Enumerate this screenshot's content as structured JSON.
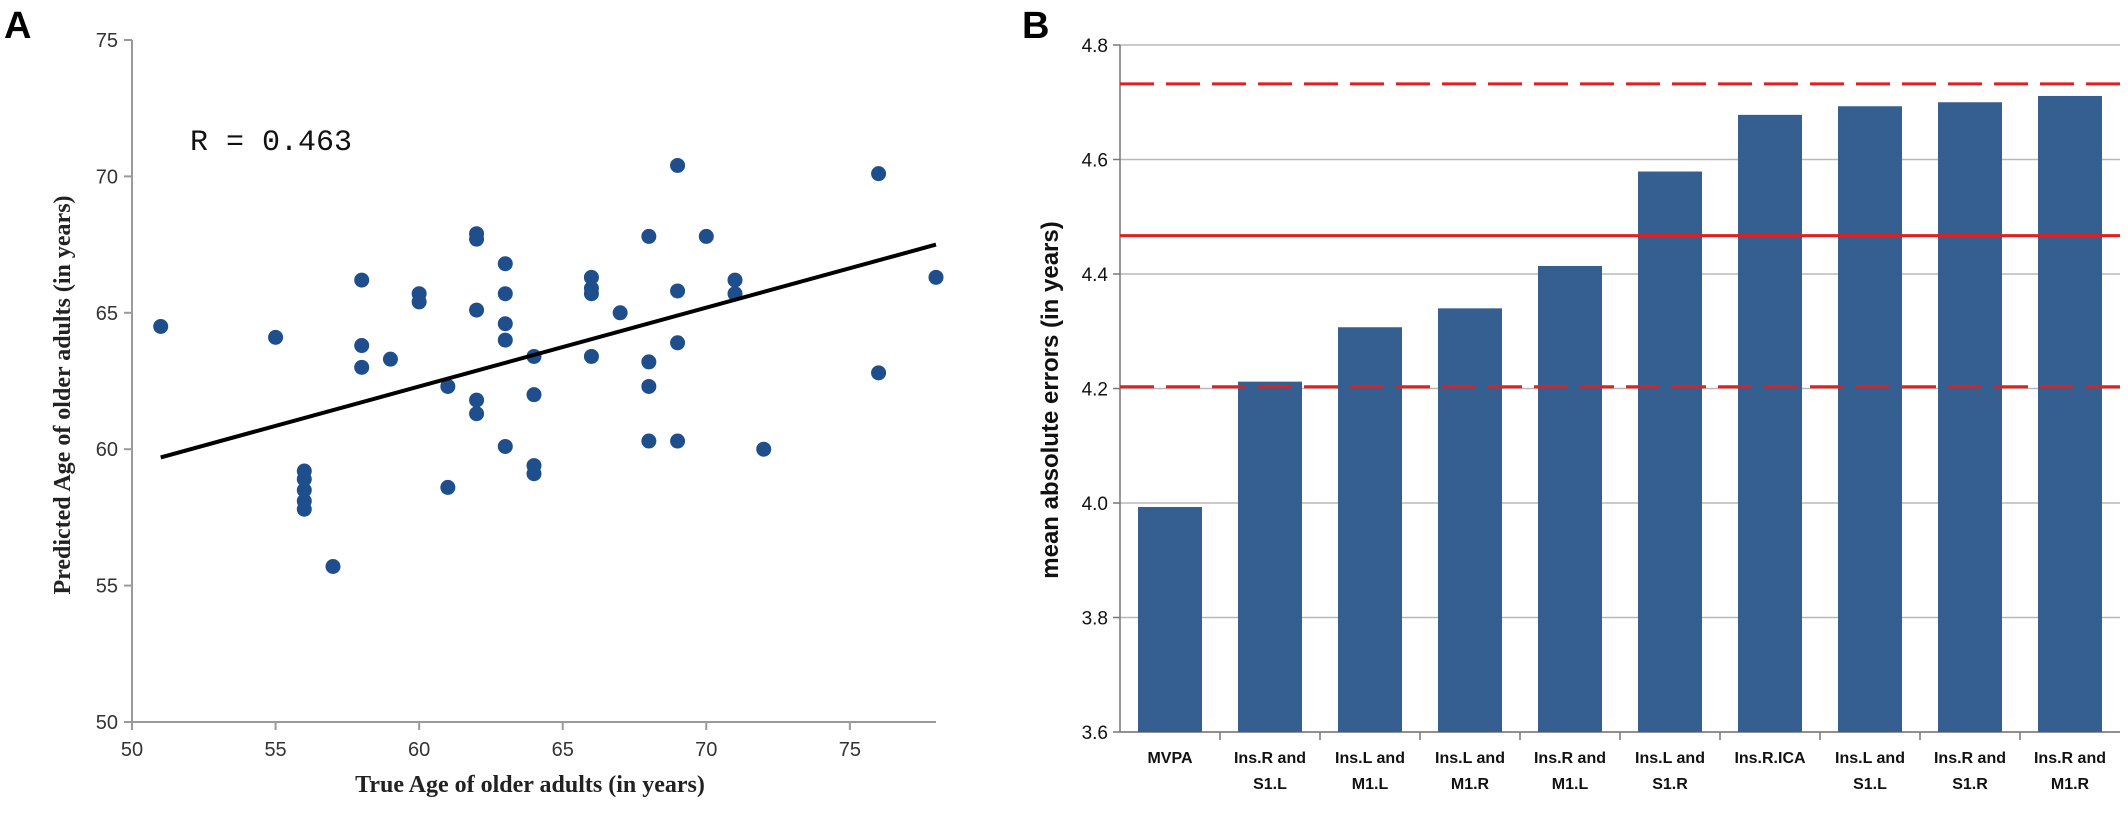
{
  "panels": {
    "a": "A",
    "b": "B"
  },
  "chart_data": [
    {
      "type": "scatter",
      "id": "A",
      "title": "",
      "annotation": "R = 0.463",
      "xlabel": "True Age of older adults (in years)",
      "ylabel": "Predicted Age of older adults (in years)",
      "xlim": [
        50,
        78
      ],
      "ylim": [
        50,
        75
      ],
      "xticks": [
        "50",
        "55",
        "60",
        "65",
        "70",
        "75"
      ],
      "yticks": [
        "50",
        "55",
        "60",
        "65",
        "70",
        "75"
      ],
      "marker_color": "#1f4e8c",
      "regression_line": {
        "x": [
          51,
          78
        ],
        "y": [
          59.7,
          67.5
        ]
      },
      "points": [
        [
          51,
          64.5
        ],
        [
          55,
          64.1
        ],
        [
          56,
          59.2
        ],
        [
          56,
          58.9
        ],
        [
          56,
          58.5
        ],
        [
          56,
          58.1
        ],
        [
          56,
          57.8
        ],
        [
          57,
          55.7
        ],
        [
          58,
          66.2
        ],
        [
          58,
          63.8
        ],
        [
          58,
          63.0
        ],
        [
          59,
          63.3
        ],
        [
          60,
          65.7
        ],
        [
          60,
          65.4
        ],
        [
          61,
          62.3
        ],
        [
          61,
          58.6
        ],
        [
          62,
          67.9
        ],
        [
          62,
          67.7
        ],
        [
          62,
          65.1
        ],
        [
          62,
          61.8
        ],
        [
          62,
          61.3
        ],
        [
          63,
          66.8
        ],
        [
          63,
          65.7
        ],
        [
          63,
          64.6
        ],
        [
          63,
          64.0
        ],
        [
          63,
          60.1
        ],
        [
          64,
          63.4
        ],
        [
          64,
          62.0
        ],
        [
          64,
          59.4
        ],
        [
          64,
          59.1
        ],
        [
          66,
          66.3
        ],
        [
          66,
          65.9
        ],
        [
          66,
          65.7
        ],
        [
          66,
          63.4
        ],
        [
          67,
          65.0
        ],
        [
          68,
          67.8
        ],
        [
          68,
          63.2
        ],
        [
          68,
          62.3
        ],
        [
          68,
          60.3
        ],
        [
          69,
          70.4
        ],
        [
          69,
          65.8
        ],
        [
          69,
          63.9
        ],
        [
          69,
          60.3
        ],
        [
          70,
          67.8
        ],
        [
          71,
          66.2
        ],
        [
          71,
          65.7
        ],
        [
          72,
          60.0
        ],
        [
          76,
          70.1
        ],
        [
          76,
          62.8
        ],
        [
          78,
          66.3
        ]
      ]
    },
    {
      "type": "bar",
      "id": "B",
      "title": "",
      "xlabel": "",
      "ylabel": "mean absolute errors (in years)",
      "ylim": [
        3.6,
        4.8
      ],
      "yticks": [
        "3.6",
        "3.8",
        "4.0",
        "4.2",
        "4.4",
        "4.6",
        "4.8"
      ],
      "bar_color": "#365f91",
      "reference_lines": {
        "color": "#e02020",
        "solid": 4.467,
        "dashed": [
          4.732,
          4.203
        ]
      },
      "categories": [
        [
          "MVPA"
        ],
        [
          "Ins.R and",
          "S1.L"
        ],
        [
          "Ins.L and",
          "M1.L"
        ],
        [
          "Ins.L and",
          "M1.R"
        ],
        [
          "Ins.R and",
          "M1.L"
        ],
        [
          "Ins.L and",
          "S1.R"
        ],
        [
          "Ins.R.ICA"
        ],
        [
          "Ins.L and",
          "S1.L"
        ],
        [
          "Ins.R and",
          "S1.R"
        ],
        [
          "Ins.R and",
          "M1.R"
        ]
      ],
      "values": [
        3.993,
        4.212,
        4.307,
        4.34,
        4.414,
        4.579,
        4.678,
        4.693,
        4.7,
        4.711
      ]
    }
  ]
}
